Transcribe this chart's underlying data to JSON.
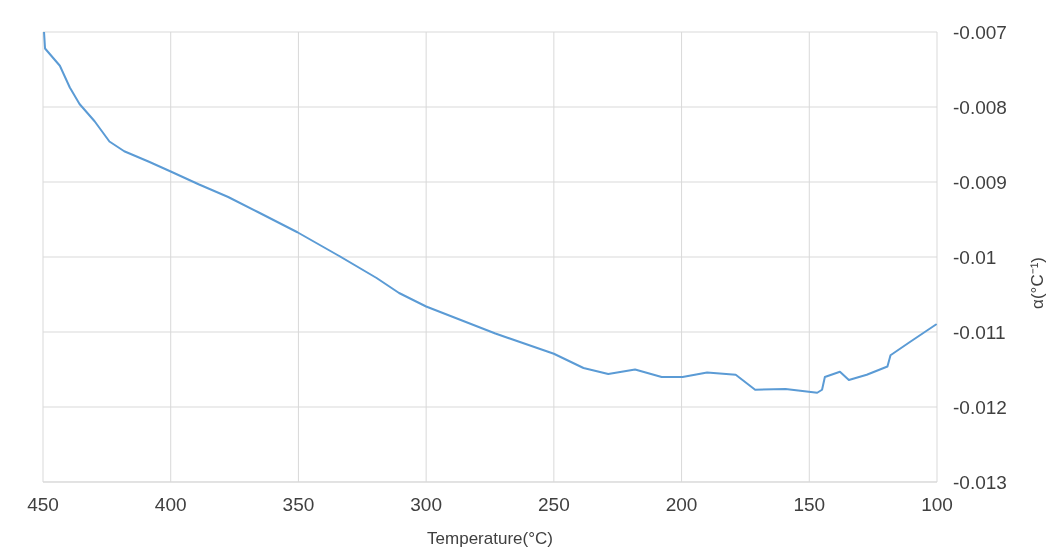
{
  "chart_data": {
    "type": "line",
    "xlabel": "Temperature(°C)",
    "ylabel": "α(°C⁻¹)",
    "xlim": [
      450,
      100
    ],
    "xticks": [
      450,
      400,
      350,
      300,
      250,
      200,
      150,
      100
    ],
    "ylim": [
      -0.013,
      -0.007
    ],
    "yticks": [
      -0.013,
      -0.012,
      -0.011,
      -0.01,
      -0.009,
      -0.008,
      -0.007
    ],
    "grid": true,
    "marker": "none",
    "line_style": "solid",
    "series": [
      {
        "color": "#5b9bd5",
        "x": [
          449.6,
          449.2,
          443.4,
          439.5,
          435.7,
          429.8,
          424,
          418.2,
          408.5,
          400,
          389.1,
          377.5,
          365.9,
          350.4,
          334.9,
          319.4,
          310.6,
          300,
          272.9,
          250,
          238.4,
          228.7,
          218.2,
          207.8,
          199.6,
          190,
          178.8,
          171.2,
          159.3,
          146.9,
          145,
          143.9,
          138,
          134.5,
          127.5,
          119.4,
          118.2,
          110.9,
          100.4
        ],
        "values": [
          -0.007,
          -0.00722,
          -0.00745,
          -0.00774,
          -0.00796,
          -0.00819,
          -0.00846,
          -0.00859,
          -0.00873,
          -0.00886,
          -0.00903,
          -0.0092,
          -0.0094,
          -0.00967,
          -0.00997,
          -0.01028,
          -0.01048,
          -0.01066,
          -0.01102,
          -0.01129,
          -0.01148,
          -0.01156,
          -0.0115,
          -0.0116,
          -0.0116,
          -0.01154,
          -0.01157,
          -0.01177,
          -0.01176,
          -0.01181,
          -0.01177,
          -0.0116,
          -0.01153,
          -0.01164,
          -0.01157,
          -0.01146,
          -0.01131,
          -0.01114,
          -0.0109
        ]
      }
    ]
  }
}
